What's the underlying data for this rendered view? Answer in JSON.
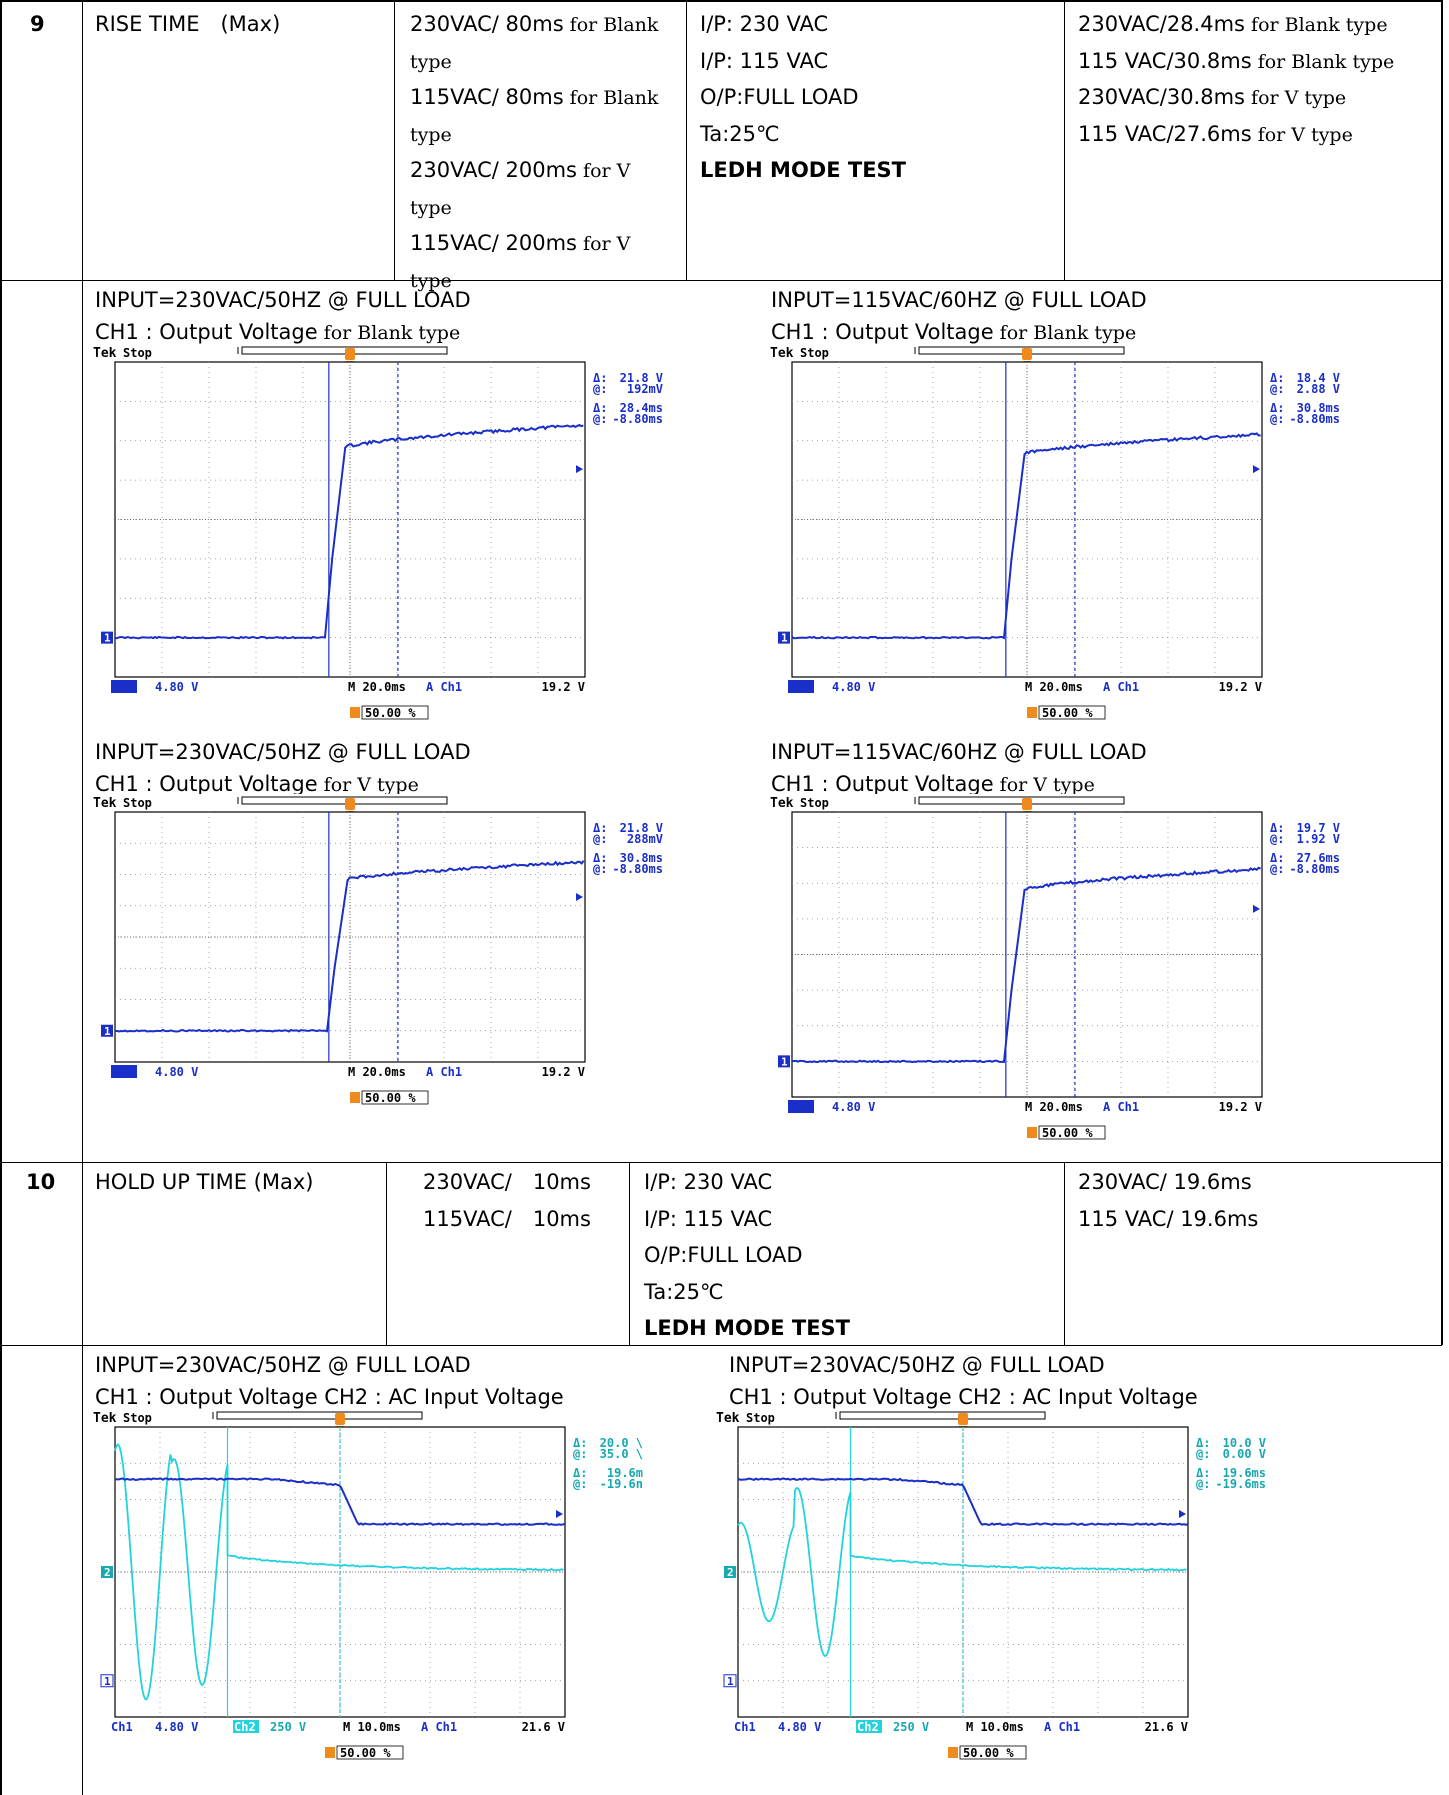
{
  "row9": {
    "number": "9",
    "item": "RISE TIME　(Max)",
    "spec": [
      [
        "230VAC/ 80ms",
        " for Blank"
      ],
      [
        "",
        "type"
      ],
      [
        "115VAC/ 80ms",
        "  for Blank"
      ],
      [
        "",
        "type"
      ],
      [
        "230VAC/ 200ms",
        " for  V"
      ],
      [
        "",
        "type"
      ],
      [
        "115VAC/ 200ms",
        "  for V"
      ],
      [
        "",
        "type"
      ]
    ],
    "conditions": [
      "I/P: 230 VAC",
      "I/P: 115 VAC",
      "O/P:FULL LOAD",
      "Ta:25℃",
      "LEDH MODE TEST"
    ],
    "results": [
      [
        "230VAC/28.4ms",
        " for Blank type"
      ],
      [
        "115 VAC/30.8ms",
        " for Blank type"
      ],
      [
        "230VAC/30.8ms",
        " for V type"
      ],
      [
        "115 VAC/27.6ms",
        " for V type"
      ]
    ]
  },
  "row9_waves": [
    {
      "input": "INPUT=230VAC/50HZ @ FULL LOAD",
      "ch1": "CH1 : Output Voltage",
      "suffix": " for Blank type",
      "scope": {
        "brand": "Tek",
        "state": "Stop",
        "d1": "21.8 V",
        "a1": "192mV",
        "d2": "28.4ms",
        "a2": "-8.80ms",
        "ch1": "Ch1",
        "volt": "4.80 V",
        "time": "M 20.0ms",
        "trig": "A  Ch1",
        "trig_level": "19.2 V",
        "trig_pos": "50.00 %"
      }
    },
    {
      "input": "INPUT=115VAC/60HZ @ FULL LOAD",
      "ch1": "CH1 : Output Voltage",
      "suffix": " for Blank type",
      "scope": {
        "brand": "Tek",
        "state": "Stop",
        "d1": "18.4 V",
        "a1": "2.88 V",
        "d2": "30.8ms",
        "a2": "-8.80ms",
        "ch1": "Ch1",
        "volt": "4.80 V",
        "time": "M 20.0ms",
        "trig": "A  Ch1",
        "trig_level": "19.2 V",
        "trig_pos": "50.00 %"
      }
    },
    {
      "input": "INPUT=230VAC/50HZ @ FULL LOAD",
      "ch1": "CH1 : Output Voltage",
      "suffix": " for V type",
      "scope": {
        "brand": "Tek",
        "state": "Stop",
        "d1": "21.8 V",
        "a1": "288mV",
        "d2": "30.8ms",
        "a2": "-8.80ms",
        "ch1": "Ch1",
        "volt": "4.80 V",
        "time": "M 20.0ms",
        "trig": "A  Ch1",
        "trig_level": "19.2 V",
        "trig_pos": "50.00 %"
      }
    },
    {
      "input": "INPUT=115VAC/60HZ @ FULL LOAD",
      "ch1": "CH1 : Output Voltage",
      "suffix": " for V type",
      "scope": {
        "brand": "Tek",
        "state": "Stop",
        "d1": "19.7 V",
        "a1": "1.92 V",
        "d2": "27.6ms",
        "a2": "-8.80ms",
        "ch1": "Ch1",
        "volt": "4.80 V",
        "time": "M 20.0ms",
        "trig": "A  Ch1",
        "trig_level": "19.2 V",
        "trig_pos": "50.00 %"
      }
    }
  ],
  "row10": {
    "number": "10",
    "item": "HOLD UP TIME (Max)",
    "spec": [
      "230VAC/　10ms",
      "115VAC/　10ms"
    ],
    "conditions": [
      "I/P: 230 VAC",
      "I/P: 115 VAC",
      "O/P:FULL LOAD",
      "Ta:25℃",
      "LEDH MODE TEST"
    ],
    "results": [
      "230VAC/ 19.6ms",
      "115 VAC/ 19.6ms"
    ]
  },
  "row10_waves": [
    {
      "input": "INPUT=230VAC/50HZ @ FULL LOAD",
      "caption": "CH1 : Output Voltage CH2 : AC Input Voltage",
      "scope": {
        "brand": "Tek",
        "state": "Stop",
        "d1": "20.0 \\",
        "a1": "35.0 \\",
        "d2": "19.6m",
        "a2": "-19.6n",
        "ch1": "Ch1",
        "volt": "4.80 V",
        "ch2": "Ch2",
        "volt2": "250 V",
        "time": "M 10.0ms",
        "trig": "A  Ch1",
        "trig_level": "21.6 V",
        "trig_pos": "50.00 %"
      }
    },
    {
      "input": "INPUT=230VAC/50HZ @ FULL LOAD",
      "caption": "CH1 : Output Voltage CH2 : AC Input Voltage",
      "scope": {
        "brand": "Tek",
        "state": "Stop",
        "d1": "10.0 V",
        "a1": "0.00 V",
        "d2": "19.6ms",
        "a2": "-19.6ms",
        "ch1": "Ch1",
        "volt": "4.80 V",
        "ch2": "Ch2",
        "volt2": "250 V",
        "time": "M 10.0ms",
        "trig": "A  Ch1",
        "trig_level": "21.6 V",
        "trig_pos": "50.00 %"
      }
    }
  ],
  "colors": {
    "ch1": "#1a2ec8",
    "ch2": "#22d3dd",
    "marker": "#f08a1c",
    "text_blue": "#1a2ec8"
  }
}
